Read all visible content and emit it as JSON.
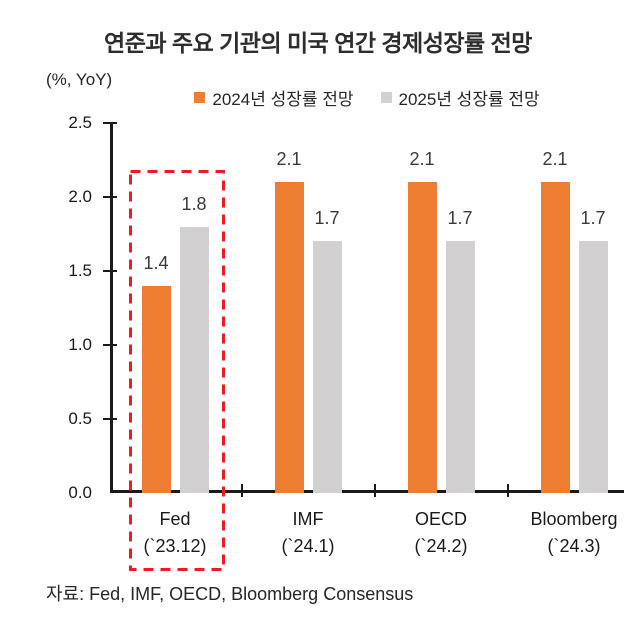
{
  "title": "연준과 주요 기관의 미국 연간 경제성장률 전망",
  "y_unit_label": "(%, YoY)",
  "source_note": "자료: Fed, IMF, OECD, Bloomberg Consensus",
  "colors": {
    "axis": "#1a1a1a",
    "text": "#262626",
    "highlight_box": "#ed1c24"
  },
  "chart_data": {
    "type": "bar",
    "title": "연준과 주요 기관의 미국 연간 경제성장률 전망",
    "ylabel": "(%, YoY)",
    "ylim": [
      0.0,
      2.5
    ],
    "ytick_step": 0.5,
    "grid": false,
    "legend_position": "top",
    "categories": [
      "Fed",
      "IMF",
      "OECD",
      "Bloomberg"
    ],
    "category_sublabels": [
      "(`23.12)",
      "(`24.1)",
      "(`24.2)",
      "(`24.3)"
    ],
    "series": [
      {
        "name": "2024년 성장률 전망",
        "color": "#ed7d31",
        "values": [
          1.4,
          2.1,
          2.1,
          2.1
        ]
      },
      {
        "name": "2025년 성장률 전망",
        "color": "#d2d0d0",
        "values": [
          1.8,
          1.7,
          1.7,
          1.7
        ]
      }
    ],
    "highlight": {
      "category": "Fed",
      "style": "red-dashed-box"
    }
  }
}
